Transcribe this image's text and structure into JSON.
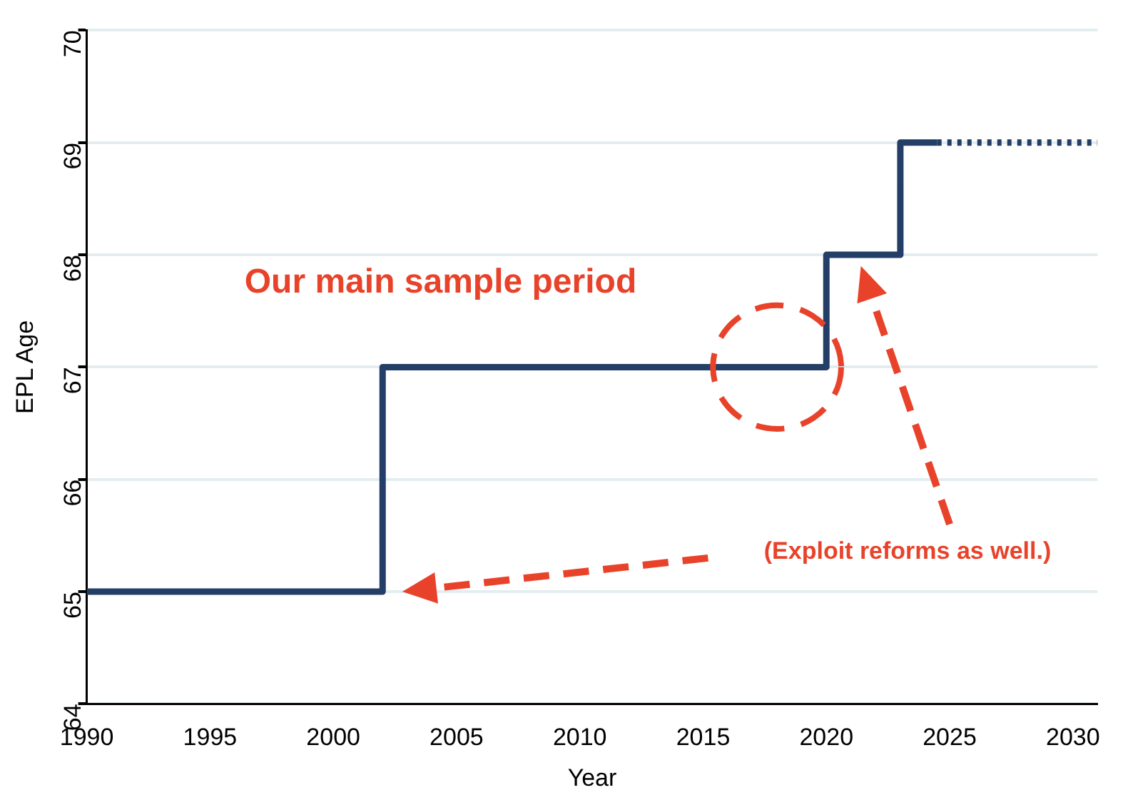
{
  "chart_data": {
    "type": "step",
    "xlabel": "Year",
    "ylabel": "EPL Age",
    "xlim": [
      1990,
      2031
    ],
    "xticks": [
      1990,
      1995,
      2000,
      2005,
      2010,
      2015,
      2020,
      2025,
      2030
    ],
    "ylim": [
      64,
      70
    ],
    "yticks": [
      64,
      65,
      66,
      67,
      68,
      69,
      70
    ],
    "grid": "y",
    "legend": false,
    "marker": "none",
    "series": [
      {
        "color": "#233f67",
        "x": [
          1990,
          2002,
          2020,
          2023,
          2024.5
        ],
        "values": [
          65,
          67,
          68,
          69,
          69
        ],
        "line_style": "solid"
      },
      {
        "color": "#233f67",
        "x": [
          2024.5,
          2031
        ],
        "values": [
          69,
          69
        ],
        "line_style": "dotted"
      }
    ],
    "annotations": [
      "Our main sample period",
      "(Exploit reforms as well.)"
    ]
  }
}
